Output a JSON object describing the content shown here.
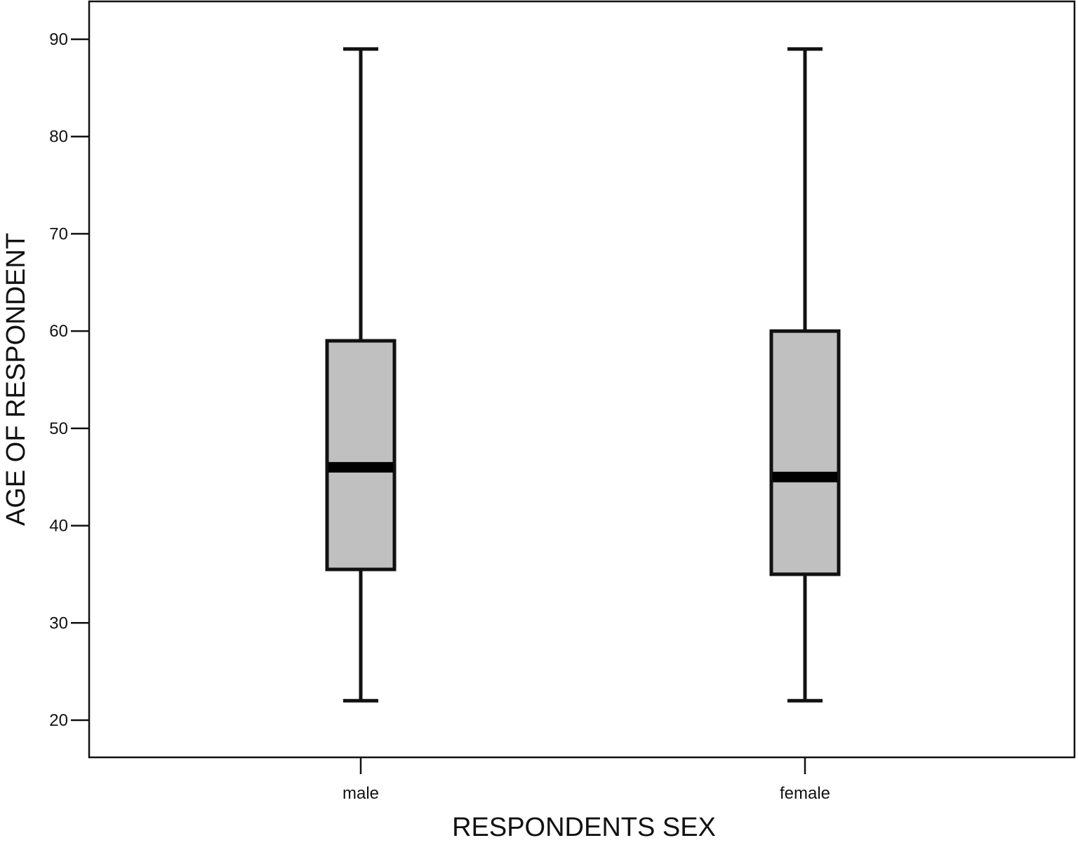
{
  "chart_data": {
    "type": "box",
    "title": "",
    "xlabel": "RESPONDENTS SEX",
    "ylabel": "AGE OF RESPONDENT",
    "ylim": [
      16,
      94
    ],
    "yticks": [
      20,
      30,
      40,
      50,
      60,
      70,
      80,
      90
    ],
    "categories": [
      "male",
      "female"
    ],
    "boxes": [
      {
        "category": "male",
        "min": 22,
        "q1": 35.5,
        "median": 46,
        "q3": 59,
        "max": 89
      },
      {
        "category": "female",
        "min": 22,
        "q1": 35,
        "median": 45,
        "q3": 60,
        "max": 89
      }
    ],
    "grid": false,
    "legend": "none",
    "colors": {
      "box_fill": "#c0c0c0",
      "stroke": "#111111",
      "median": "#000000",
      "background": "#ffffff"
    }
  }
}
